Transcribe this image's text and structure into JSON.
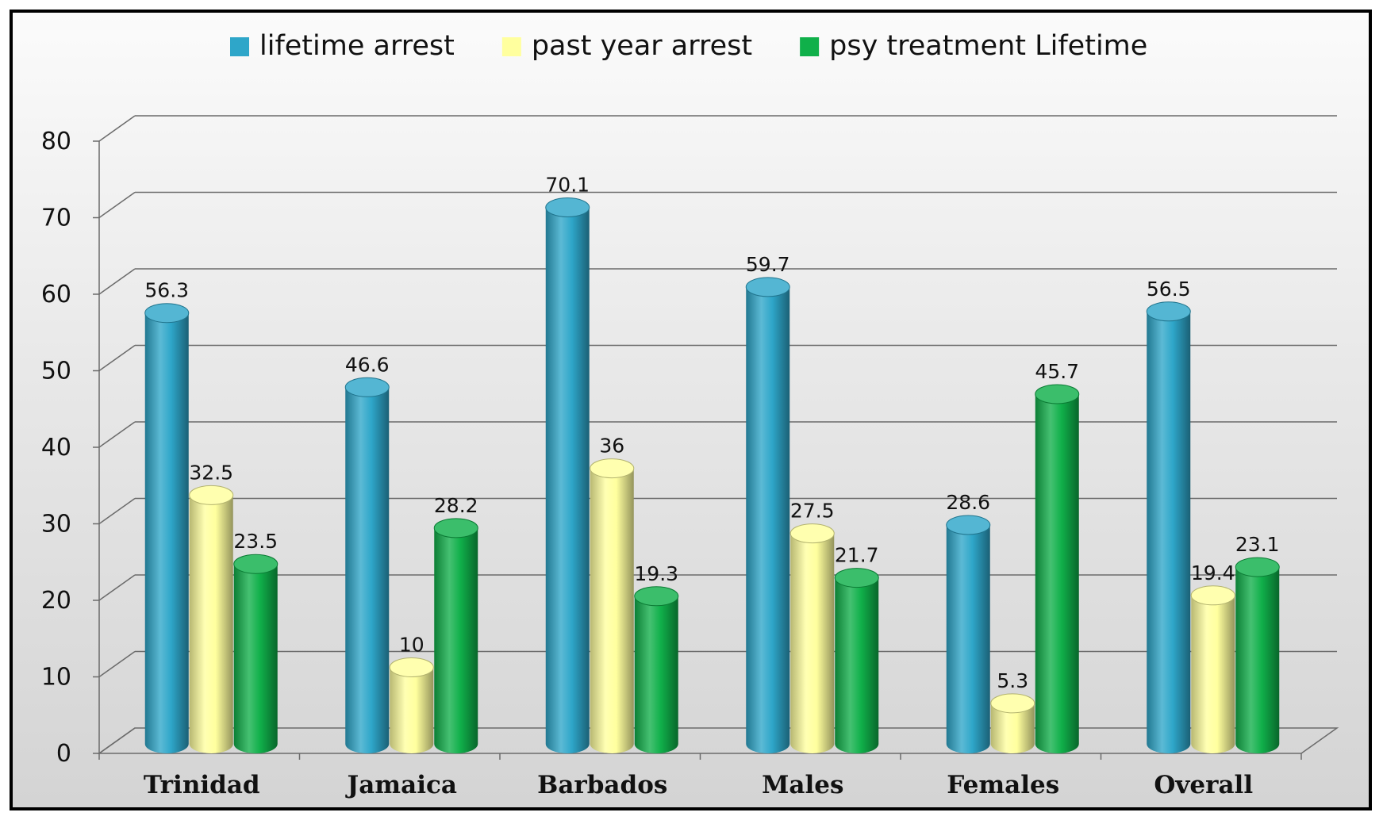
{
  "chart_data": {
    "type": "bar",
    "style": "3d-cylinder",
    "categories": [
      "Trinidad",
      "Jamaica",
      "Barbados",
      "Males",
      "Females",
      "Overall"
    ],
    "series": [
      {
        "name": "lifetime arrest",
        "color": "#2ea6c9",
        "values": [
          56.3,
          46.6,
          70.1,
          59.7,
          28.6,
          56.5
        ]
      },
      {
        "name": "past year arrest",
        "color": "#ffff9e",
        "values": [
          32.5,
          10,
          36,
          27.5,
          5.3,
          19.4
        ]
      },
      {
        "name": "psy treatment Lifetime",
        "color": "#10b04a",
        "values": [
          23.5,
          28.2,
          19.3,
          21.7,
          45.7,
          23.1
        ]
      }
    ],
    "value_labels": [
      [
        "56.3",
        "46.6",
        "70.1",
        "59.7",
        "28.6",
        "56.5"
      ],
      [
        "32.5",
        "10",
        "36",
        "27.5",
        "5.3",
        "19.4"
      ],
      [
        "23.5",
        "28.2",
        "19.3",
        "21.7",
        "45.7",
        "23.1"
      ]
    ],
    "ylim": [
      0,
      80
    ],
    "yticks": [
      "0",
      "10",
      "20",
      "30",
      "40",
      "50",
      "60",
      "70",
      "80"
    ],
    "grid": true,
    "legend_position": "top",
    "title": "",
    "xlabel": "",
    "ylabel": ""
  }
}
